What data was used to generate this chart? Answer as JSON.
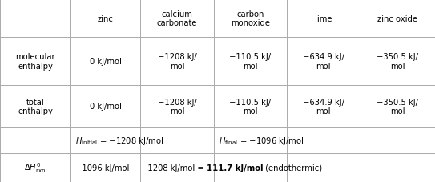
{
  "col_headers": [
    "",
    "zinc",
    "calcium\ncarbonate",
    "carbon\nmonoxide",
    "lime",
    "zinc oxide"
  ],
  "row1_label": "molecular\nenthalpy",
  "row1_values": [
    "0 kJ/mol",
    "−1208 kJ/\nmol",
    "−110.5 kJ/\nmol",
    "−634.9 kJ/\nmol",
    "−350.5 kJ/\nmol"
  ],
  "row2_label": "total\nenthalpy",
  "row2_values": [
    "0 kJ/mol",
    "−1208 kJ/\nmol",
    "−110.5 kJ/\nmol",
    "−634.9 kJ/\nmol",
    "−350.5 kJ/\nmol"
  ],
  "bg_color": "#ffffff",
  "line_color": "#aaaaaa",
  "text_color": "#000000",
  "font_size": 7.2
}
